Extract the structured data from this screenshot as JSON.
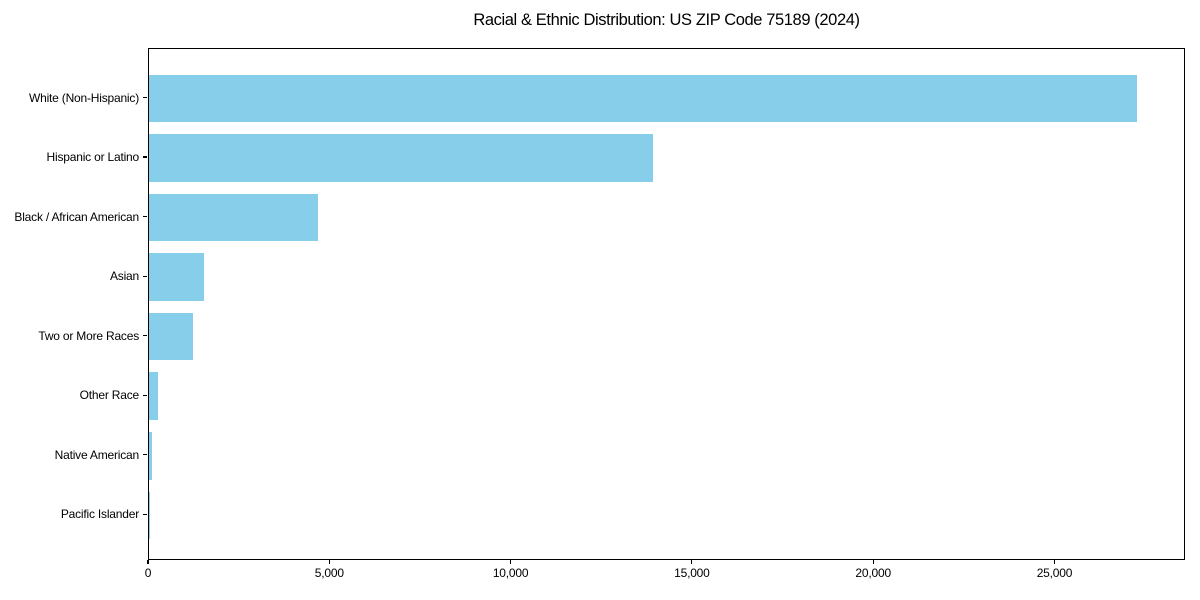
{
  "title": "Racial & Ethnic Distribution: US ZIP Code 75189 (2024)",
  "chart_data": {
    "type": "bar",
    "orientation": "horizontal",
    "title": "Racial & Ethnic Distribution: US ZIP Code 75189 (2024)",
    "categories": [
      "White (Non-Hispanic)",
      "Hispanic or Latino",
      "Black / African American",
      "Asian",
      "Two or More Races",
      "Other Race",
      "Native American",
      "Pacific Islander"
    ],
    "values": [
      27250,
      13890,
      4650,
      1520,
      1210,
      250,
      80,
      10
    ],
    "xlabel": "",
    "ylabel": "",
    "xlim": [
      0,
      28600
    ],
    "xticks": [
      0,
      5000,
      10000,
      15000,
      20000,
      25000
    ],
    "xtick_labels": [
      "0",
      "5,000",
      "10,000",
      "15,000",
      "20,000",
      "25,000"
    ],
    "bar_color": "#87CEEB",
    "grid": false,
    "legend": null
  }
}
